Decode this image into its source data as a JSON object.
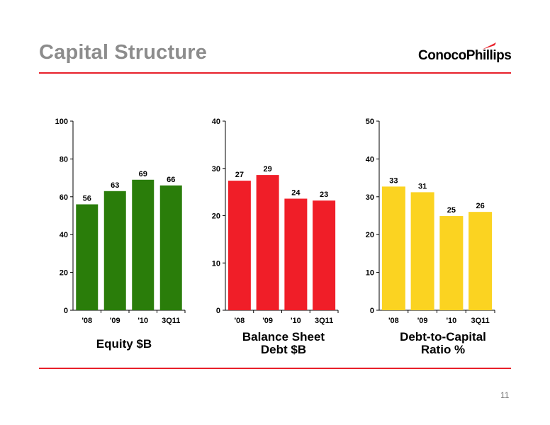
{
  "slide": {
    "title": "Capital Structure",
    "logo_text": "ConocoPhillips",
    "page_number": "11"
  },
  "colors": {
    "accent": "#e8202a",
    "title": "#8c8c8c"
  },
  "chart_data": [
    {
      "type": "bar",
      "categories": [
        "'08",
        "'09",
        "'10",
        "3Q11"
      ],
      "values": [
        56,
        63,
        69,
        66
      ],
      "ylim": [
        0,
        100
      ],
      "yticks": [
        0,
        20,
        40,
        60,
        80,
        100
      ],
      "color": "#2a7d0a",
      "xlabel": "Equity  $B",
      "ylabel": ""
    },
    {
      "type": "bar",
      "categories": [
        "'08",
        "'09",
        "'10",
        "3Q11"
      ],
      "values": [
        27,
        29,
        24,
        23
      ],
      "plotted_values": [
        27.4,
        28.6,
        23.6,
        23.2
      ],
      "ylim": [
        0,
        40
      ],
      "yticks": [
        0,
        10,
        20,
        30,
        40
      ],
      "color": "#f01e28",
      "xlabel": "Balance Sheet\nDebt  $B",
      "ylabel": ""
    },
    {
      "type": "bar",
      "categories": [
        "'08",
        "'09",
        "'10",
        "3Q11"
      ],
      "values": [
        33,
        31,
        25,
        26
      ],
      "plotted_values": [
        32.7,
        31.2,
        24.9,
        26.0
      ],
      "ylim": [
        0,
        50
      ],
      "yticks": [
        0,
        10,
        20,
        30,
        40,
        50
      ],
      "color": "#fbd321",
      "xlabel": "Debt-to-Capital\nRatio  %",
      "ylabel": ""
    }
  ]
}
